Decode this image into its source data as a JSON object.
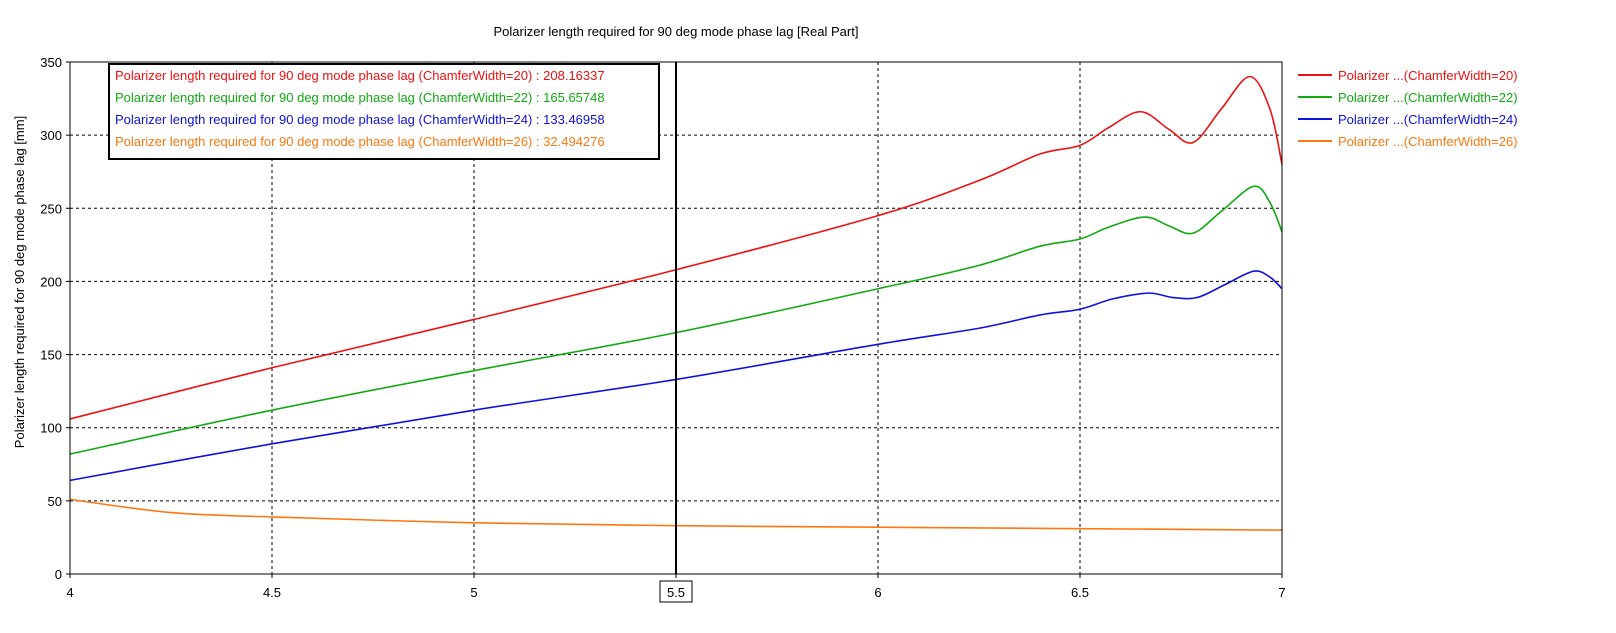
{
  "chart_data": {
    "type": "line",
    "title": "Polarizer length required for 90 deg mode phase lag [Real Part]",
    "xlabel": "",
    "ylabel": "Polarizer length required for 90 deg mode phase lag [mm]",
    "xlim": [
      4,
      7
    ],
    "ylim": [
      0,
      350
    ],
    "x_ticks": [
      4,
      4.5,
      5,
      5.5,
      6,
      6.5,
      7
    ],
    "x_tick_labels": [
      "4",
      "4.5",
      "5",
      "",
      "6",
      "6.5",
      "7"
    ],
    "y_ticks": [
      0,
      50,
      100,
      150,
      200,
      250,
      300,
      350
    ],
    "y_tick_labels": [
      "0",
      "50",
      "100",
      "150",
      "200",
      "250",
      "300",
      "350"
    ],
    "grid": true,
    "legend_position": "right",
    "cursor": {
      "x": 5.5,
      "label": "5.5",
      "readouts": [
        "Polarizer length required for 90 deg mode phase lag (ChamferWidth=20) : 208.16337",
        "Polarizer length required for 90 deg mode phase lag (ChamferWidth=22) : 165.65748",
        "Polarizer length required for 90 deg mode phase lag (ChamferWidth=24) : 133.46958",
        "Polarizer length required for 90 deg mode phase lag (ChamferWidth=26) : 32.494276"
      ]
    },
    "series": [
      {
        "name": "Polarizer ...(ChamferWidth=20)",
        "color": "#ee1111",
        "x": [
          4,
          4.5,
          5,
          5.5,
          6,
          6.25,
          6.4,
          6.5,
          6.57,
          6.65,
          6.72,
          6.78,
          6.85,
          6.92,
          6.97,
          7
        ],
        "y": [
          106,
          141,
          174,
          208,
          245,
          269,
          287,
          293,
          305,
          316,
          304,
          295,
          318,
          340,
          318,
          280
        ]
      },
      {
        "name": "Polarizer ...(ChamferWidth=22)",
        "color": "#11aa11",
        "x": [
          4,
          4.5,
          5,
          5.5,
          6,
          6.25,
          6.4,
          6.5,
          6.57,
          6.66,
          6.72,
          6.78,
          6.85,
          6.93,
          6.97,
          7
        ],
        "y": [
          82,
          112,
          139,
          165,
          195,
          211,
          224,
          229,
          237,
          244,
          238,
          233,
          248,
          265,
          254,
          234
        ]
      },
      {
        "name": "Polarizer ...(ChamferWidth=24)",
        "color": "#1111dd",
        "x": [
          4,
          4.5,
          5,
          5.5,
          6,
          6.25,
          6.4,
          6.5,
          6.58,
          6.67,
          6.73,
          6.79,
          6.86,
          6.93,
          6.97,
          7
        ],
        "y": [
          64,
          89,
          112,
          133,
          157,
          168,
          177,
          181,
          188,
          192,
          189,
          189,
          198,
          207,
          203,
          195
        ]
      },
      {
        "name": "Polarizer ...(ChamferWidth=26)",
        "color": "#ff7711",
        "x": [
          4,
          4.25,
          4.5,
          5,
          5.5,
          6,
          6.5,
          7
        ],
        "y": [
          51,
          42,
          39,
          35,
          33,
          32,
          31,
          30
        ]
      }
    ]
  }
}
